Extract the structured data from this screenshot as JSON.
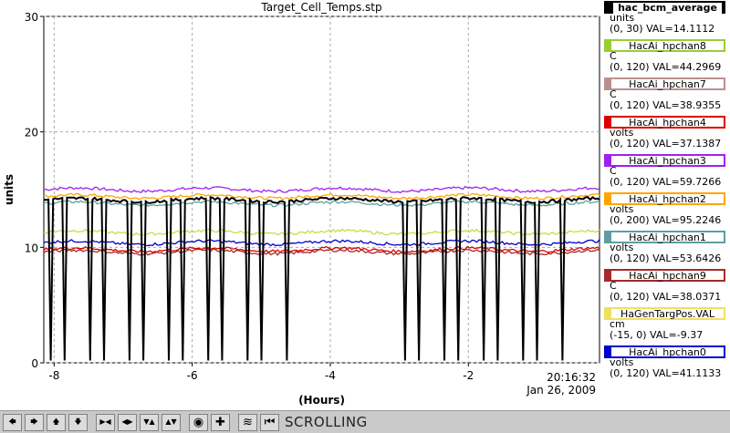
{
  "chart_data": {
    "type": "line",
    "title": "Target_Cell_Temps.stp",
    "xlabel": "(Hours)",
    "ylabel": "units",
    "xlim": [
      -8.15,
      -0.1
    ],
    "ylim": [
      0,
      30
    ],
    "x_ticks": [
      "-8",
      "-6",
      "-4",
      "-2"
    ],
    "y_ticks": [
      "0",
      "10",
      "20",
      "30"
    ],
    "grid": true,
    "timestamp_time": "20:16:32",
    "timestamp_date": "Jan 26, 2009",
    "series": [
      {
        "name": "HacAi_hpchan3",
        "color": "#a020f0",
        "level": 15.0
      },
      {
        "name": "HacAi_hpchan2",
        "color": "#ffa500",
        "level": 14.4
      },
      {
        "name": "HacAi_hpchan1",
        "color": "#5f9ea0",
        "level": 13.8
      },
      {
        "name": "HaGenTargPos.VAL",
        "color": "#cdd94a",
        "level": 11.3
      },
      {
        "name": "HacAi_hpchan0",
        "color": "#0000cd",
        "level": 10.4
      },
      {
        "name": "HacAi_hpchan4",
        "color": "#dd0000",
        "level": 9.8
      },
      {
        "name": "HacAi_hpchan9",
        "color": "#a52a2a",
        "level": 9.6
      },
      {
        "name": "hac_bcm_average",
        "color": "#000000",
        "level": 14.1
      }
    ]
  },
  "legend": [
    {
      "name": "hac_bcm_average",
      "unit": "units",
      "range": "(0, 30) VAL=14.1112",
      "color": "#000000"
    },
    {
      "name": "HacAi_hpchan8",
      "unit": "C",
      "range": "(0, 120) VAL=44.2969",
      "color": "#9acd32"
    },
    {
      "name": "HacAi_hpchan7",
      "unit": "C",
      "range": "(0, 120) VAL=38.9355",
      "color": "#bc8f8f"
    },
    {
      "name": "HacAi_hpchan4",
      "unit": "volts",
      "range": "(0, 120) VAL=37.1387",
      "color": "#dd0000"
    },
    {
      "name": "HacAi_hpchan3",
      "unit": "C",
      "range": "(0, 120) VAL=59.7266",
      "color": "#a020f0"
    },
    {
      "name": "HacAi_hpchan2",
      "unit": "volts",
      "range": "(0, 200) VAL=95.2246",
      "color": "#ffa500"
    },
    {
      "name": "HacAi_hpchan1",
      "unit": "volts",
      "range": "(0, 120) VAL=53.6426",
      "color": "#5f9ea0"
    },
    {
      "name": "HacAi_hpchan9",
      "unit": "C",
      "range": "(0, 120) VAL=38.0371",
      "color": "#a52a2a"
    },
    {
      "name": "HaGenTargPos.VAL",
      "unit": "cm",
      "range": "(-15, 0) VAL=-9.37",
      "color": "#f0e060"
    },
    {
      "name": "HacAi_hpchan0",
      "unit": "volts",
      "range": "(0, 120) VAL=41.1133",
      "color": "#0000cd"
    }
  ],
  "toolbar": {
    "status": "SCROLLING",
    "buttons": [
      {
        "name": "scroll-left-button",
        "icon": "arrow-left-icon",
        "glyph": "🡄"
      },
      {
        "name": "scroll-right-button",
        "icon": "arrow-right-icon",
        "glyph": "🡆"
      },
      {
        "name": "scroll-up-button",
        "icon": "arrow-up-icon",
        "glyph": "🡅"
      },
      {
        "name": "scroll-down-button",
        "icon": "arrow-down-icon",
        "glyph": "🡇"
      },
      {
        "name": "zoom-in-x-button",
        "icon": "zoom-in-x-icon",
        "glyph": "▶◀"
      },
      {
        "name": "zoom-out-x-button",
        "icon": "zoom-out-x-icon",
        "glyph": "◀▶"
      },
      {
        "name": "zoom-in-y-button",
        "icon": "zoom-in-y-icon",
        "glyph": "▼▲"
      },
      {
        "name": "zoom-out-y-button",
        "icon": "zoom-out-y-icon",
        "glyph": "▲▼"
      },
      {
        "name": "record-button",
        "icon": "record-icon",
        "glyph": "◉"
      },
      {
        "name": "add-button",
        "icon": "plus-icon",
        "glyph": "✚"
      },
      {
        "name": "autoscale-button",
        "icon": "autoscale-icon",
        "glyph": "≋"
      },
      {
        "name": "go-to-end-button",
        "icon": "go-to-end-icon",
        "glyph": "⏮"
      }
    ]
  }
}
